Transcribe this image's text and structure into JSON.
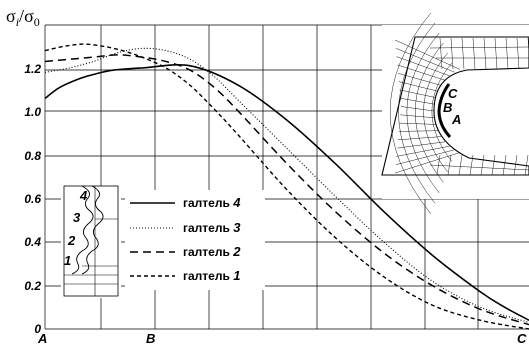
{
  "chart_data": {
    "type": "line",
    "title": "",
    "ylabel": {
      "symbol": "σ",
      "num_sub": "i",
      "slash": "/",
      "den": "σ",
      "den_sub": "0"
    },
    "xlabel": "",
    "x_range": [
      0,
      1
    ],
    "ylim": [
      0,
      1.3
    ],
    "y_ticks": [
      "0",
      "0.2",
      "0.4",
      "0.6",
      "0.8",
      "1.0",
      "1.2"
    ],
    "x_ticks": [
      {
        "label": "A",
        "x": 0
      },
      {
        "label": "B",
        "x": 0.2
      },
      {
        "label": "C",
        "x": 1
      }
    ],
    "grid": true,
    "legend_position": "center-left",
    "series": [
      {
        "name": "галтель 4",
        "label_word": "галтель",
        "label_num": "4",
        "style": "solid",
        "x": [
          0,
          0.03,
          0.07,
          0.1,
          0.14,
          0.2,
          0.3,
          0.4,
          0.5,
          0.6,
          0.7,
          0.8,
          0.9,
          0.95,
          1.0
        ],
        "y": [
          1.06,
          1.11,
          1.15,
          1.17,
          1.19,
          1.2,
          1.21,
          1.12,
          0.96,
          0.76,
          0.54,
          0.34,
          0.17,
          0.1,
          0.04
        ]
      },
      {
        "name": "галтель 3",
        "label_word": "галтель",
        "label_num": "3",
        "style": "dotted",
        "x": [
          0,
          0.05,
          0.1,
          0.15,
          0.2,
          0.25,
          0.3,
          0.35,
          0.4,
          0.5,
          0.6,
          0.7,
          0.8,
          0.9,
          1.0
        ],
        "y": [
          1.18,
          1.2,
          1.23,
          1.27,
          1.29,
          1.28,
          1.24,
          1.16,
          1.05,
          0.83,
          0.61,
          0.4,
          0.22,
          0.1,
          0.03
        ]
      },
      {
        "name": "галтель 2",
        "label_word": "галтель",
        "label_num": "2",
        "style": "dashed",
        "x": [
          0,
          0.05,
          0.1,
          0.15,
          0.2,
          0.25,
          0.3,
          0.35,
          0.4,
          0.5,
          0.6,
          0.7,
          0.8,
          0.9,
          1.0
        ],
        "y": [
          1.23,
          1.24,
          1.25,
          1.26,
          1.25,
          1.23,
          1.19,
          1.11,
          1.0,
          0.76,
          0.54,
          0.35,
          0.2,
          0.09,
          0.02
        ]
      },
      {
        "name": "галтель 1",
        "label_word": "галтель",
        "label_num": "1",
        "style": "short-dashed",
        "x": [
          0,
          0.04,
          0.08,
          0.12,
          0.16,
          0.2,
          0.25,
          0.3,
          0.35,
          0.4,
          0.5,
          0.6,
          0.7,
          0.8,
          0.9,
          1.0
        ],
        "y": [
          1.28,
          1.3,
          1.31,
          1.3,
          1.28,
          1.25,
          1.2,
          1.12,
          1.01,
          0.89,
          0.64,
          0.42,
          0.24,
          0.11,
          0.04,
          0.0
        ]
      }
    ]
  },
  "inset_fillet": {
    "labels": [
      "C",
      "B",
      "A"
    ]
  },
  "inset_thread": {
    "labels": [
      "4",
      "3",
      "2",
      "1"
    ]
  },
  "colors": {
    "line": "#000000",
    "grid": "#000000",
    "background": "#ffffff"
  }
}
